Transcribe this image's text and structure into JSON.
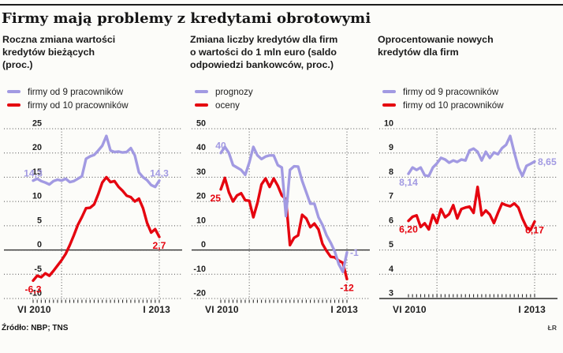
{
  "header": {
    "title": "Firmy mają problemy z kredytami obrotowymi"
  },
  "footer": {
    "source": "Źródło: NBP; TNS",
    "credit": "ŁR"
  },
  "colors": {
    "purple": "#a29ae2",
    "red": "#e5040f",
    "grid": "#4d4d4d",
    "axis_solid": "#2e2e2e",
    "text": "#161616"
  },
  "x_axis": {
    "start": "VI 2010",
    "end": "I 2013",
    "points": 32,
    "vline_months": [
      7,
      31
    ]
  },
  "chart_data": [
    {
      "type": "line",
      "title": "Roczna zmiana wartości kredytów bieżących (proc.)",
      "title_lines": [
        "Roczna zmiana wartości",
        "kredytów bieżących",
        "(proc.)"
      ],
      "xlabel_start": "VI 2010",
      "xlabel_end": "I 2013",
      "ylim": [
        -10,
        25
      ],
      "yticks": [
        25,
        20,
        15,
        10,
        5,
        0,
        -5,
        -10
      ],
      "solid_line_at": 0,
      "ticks_pos": "below",
      "ylabel_x": 50,
      "grid": "dotted",
      "legend_position": "top",
      "series": [
        {
          "name": "firmy od 9 pracowników",
          "color": "#a29ae2",
          "z": 1,
          "start_label": {
            "text": "14,3",
            "pos": "above"
          },
          "end_label": {
            "text": "14,3",
            "pos": "above"
          },
          "values": [
            14.3,
            14.7,
            14.2,
            13.9,
            13.5,
            14.2,
            14.5,
            14.3,
            14.7,
            14.0,
            14.2,
            14.7,
            15.2,
            18.8,
            19.3,
            19.6,
            20.5,
            21.5,
            23.5,
            20.5,
            20.2,
            20.3,
            20.1,
            20.2,
            21.0,
            19.5,
            16.0,
            15.0,
            14.4,
            13.4,
            13.0,
            14.3
          ]
        },
        {
          "name": "firmy od 10 pracowników",
          "color": "#e5040f",
          "z": 2,
          "start_label": {
            "text": "-6,3",
            "pos": "below"
          },
          "end_label": {
            "text": "2,7",
            "pos": "below"
          },
          "values": [
            -6.3,
            -5.3,
            -5.6,
            -4.8,
            -5.3,
            -4.3,
            -3.2,
            -2.1,
            -0.8,
            1.0,
            3.0,
            5.2,
            6.8,
            8.6,
            8.7,
            9.4,
            11.5,
            13.9,
            15.0,
            14.0,
            14.2,
            13.0,
            12.2,
            11.2,
            10.9,
            10.0,
            10.6,
            8.6,
            5.6,
            3.6,
            4.3,
            2.7
          ]
        }
      ]
    },
    {
      "type": "line",
      "title": "Zmiana liczby kredytów dla firm o wartości do 1 mln euro (saldo odpowiedzi bankowców, proc.)",
      "title_lines": [
        "Zmiana liczby kredytów dla firm",
        "o wartości do 1 mln euro (saldo",
        "odpowiedzi bankowców, proc.)"
      ],
      "xlabel_start": "VI 2010",
      "xlabel_end": "I 2013",
      "ylim": [
        -20,
        50
      ],
      "yticks": [
        50,
        40,
        30,
        20,
        10,
        0,
        -10,
        -20
      ],
      "solid_line_at": 0,
      "ticks_pos": "below",
      "ylabel_x": 20,
      "grid": "dotted",
      "legend_position": "top",
      "series": [
        {
          "name": "prognozy",
          "color": "#a29ae2",
          "z": 2,
          "start_label": {
            "text": "40",
            "pos": "above"
          },
          "end_label": {
            "text": "-1",
            "pos": "right"
          },
          "values": [
            40,
            42.5,
            40,
            35,
            34,
            33,
            31,
            36,
            42.5,
            39,
            37.5,
            38.5,
            39,
            39,
            35,
            34,
            14,
            33,
            34.5,
            34.4,
            28.5,
            23.8,
            19.1,
            19.1,
            13.5,
            10.3,
            6,
            3,
            -0.6,
            -5.9,
            -9,
            -1
          ]
        },
        {
          "name": "oceny",
          "color": "#e5040f",
          "z": 1,
          "start_label": {
            "text": "25",
            "pos": "below-left"
          },
          "end_label": {
            "text": "-12",
            "pos": "below"
          },
          "values": [
            25,
            29.7,
            23.8,
            20,
            22.5,
            23.4,
            20.5,
            20.3,
            13.5,
            19.4,
            27,
            29.5,
            26,
            29.5,
            26.5,
            22.5,
            21,
            2,
            5,
            6,
            14.5,
            13,
            9.4,
            10.9,
            8.5,
            2.5,
            -0.4,
            -2.8,
            -3,
            -4.4,
            -5.3,
            -12
          ]
        }
      ]
    },
    {
      "type": "line",
      "title": "Oprocentowanie nowych kredytów dla firm",
      "title_lines": [
        "Oprocentowanie nowych",
        "kredytów dla firm"
      ],
      "xlabel_start": "VI 2010",
      "xlabel_end": "I 2013",
      "ylim": [
        3,
        10
      ],
      "yticks": [
        10,
        9,
        8,
        7,
        6,
        5,
        4,
        3
      ],
      "solid_line_at": 3,
      "ticks_pos": "above",
      "ylabel_x": 20,
      "grid": "dotted",
      "legend_position": "top",
      "series": [
        {
          "name": "firmy od 9 pracowników",
          "color": "#a29ae2",
          "z": 1,
          "start_label": {
            "text": "8,14",
            "pos": "below"
          },
          "end_label": {
            "text": "8,65",
            "pos": "right"
          },
          "values": [
            8.14,
            8.4,
            8.3,
            8.4,
            8.08,
            8.05,
            8.4,
            8.57,
            8.8,
            8.73,
            8.6,
            8.69,
            8.63,
            8.73,
            8.69,
            9.1,
            9.18,
            9.05,
            8.69,
            9.05,
            8.8,
            9.02,
            8.95,
            9.2,
            9.34,
            9.7,
            9.02,
            8.4,
            8.05,
            8.47,
            8.55,
            8.65
          ]
        },
        {
          "name": "firmy od 10 pracowników",
          "color": "#e5040f",
          "z": 2,
          "start_label": {
            "text": "6,20",
            "pos": "below"
          },
          "end_label": {
            "text": "6,17",
            "pos": "below"
          },
          "values": [
            6.2,
            6.37,
            6.43,
            5.95,
            6.1,
            5.85,
            6.45,
            6.11,
            6.69,
            6.35,
            6.48,
            6.85,
            6.3,
            6.69,
            6.75,
            6.79,
            6.53,
            7.6,
            6.43,
            6.63,
            6.46,
            6.11,
            6.53,
            6.92,
            6.85,
            6.8,
            6.92,
            6.75,
            6.3,
            5.94,
            5.82,
            6.17
          ]
        }
      ]
    }
  ]
}
